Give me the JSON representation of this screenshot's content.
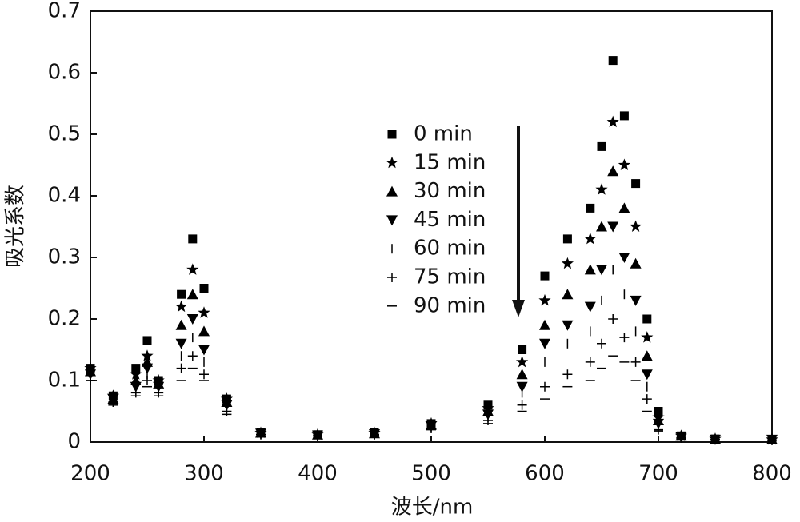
{
  "chart_data": {
    "type": "scatter",
    "x_label": "波长/nm",
    "y_label": "吸光系数",
    "x": [
      200,
      220,
      240,
      250,
      260,
      280,
      290,
      300,
      320,
      350,
      400,
      450,
      500,
      550,
      580,
      600,
      620,
      640,
      650,
      660,
      670,
      680,
      690,
      700,
      720,
      750,
      800
    ],
    "series": [
      {
        "name": "0 min",
        "color": "#000000",
        "marker": "square",
        "values": [
          0.12,
          0.075,
          0.12,
          0.165,
          0.1,
          0.24,
          0.33,
          0.25,
          0.07,
          0.015,
          0.012,
          0.015,
          0.03,
          0.06,
          0.15,
          0.27,
          0.33,
          0.38,
          0.48,
          0.62,
          0.53,
          0.42,
          0.2,
          0.05,
          0.01,
          0.005,
          0.004
        ]
      },
      {
        "name": "15 min",
        "color": "#000000",
        "marker": "star",
        "values": [
          0.12,
          0.075,
          0.11,
          0.14,
          0.1,
          0.22,
          0.28,
          0.21,
          0.07,
          0.015,
          0.012,
          0.015,
          0.03,
          0.055,
          0.13,
          0.23,
          0.29,
          0.33,
          0.41,
          0.52,
          0.45,
          0.35,
          0.17,
          0.04,
          0.01,
          0.005,
          0.004
        ]
      },
      {
        "name": "30 min",
        "color": "#000000",
        "marker": "triangle-up",
        "values": [
          0.115,
          0.07,
          0.1,
          0.13,
          0.095,
          0.19,
          0.24,
          0.18,
          0.065,
          0.015,
          0.012,
          0.014,
          0.028,
          0.05,
          0.11,
          0.19,
          0.24,
          0.28,
          0.35,
          0.44,
          0.38,
          0.29,
          0.14,
          0.035,
          0.01,
          0.005,
          0.004
        ]
      },
      {
        "name": "45 min",
        "color": "#000000",
        "marker": "triangle-down",
        "values": [
          0.11,
          0.07,
          0.09,
          0.12,
          0.09,
          0.16,
          0.2,
          0.15,
          0.06,
          0.014,
          0.011,
          0.013,
          0.026,
          0.045,
          0.09,
          0.16,
          0.19,
          0.22,
          0.28,
          0.35,
          0.3,
          0.23,
          0.11,
          0.03,
          0.008,
          0.004,
          0.004
        ]
      },
      {
        "name": "60 min",
        "color": "#000000",
        "marker": "tick",
        "values": [
          0.105,
          0.065,
          0.085,
          0.11,
          0.085,
          0.14,
          0.17,
          0.13,
          0.055,
          0.013,
          0.011,
          0.012,
          0.024,
          0.04,
          0.08,
          0.13,
          0.16,
          0.18,
          0.23,
          0.28,
          0.24,
          0.18,
          0.09,
          0.025,
          0.008,
          0.004,
          0.003
        ]
      },
      {
        "name": "75 min",
        "color": "#000000",
        "marker": "plus",
        "values": [
          0.1,
          0.065,
          0.08,
          0.1,
          0.08,
          0.12,
          0.14,
          0.11,
          0.05,
          0.012,
          0.01,
          0.012,
          0.022,
          0.035,
          0.06,
          0.09,
          0.11,
          0.13,
          0.16,
          0.2,
          0.17,
          0.13,
          0.07,
          0.02,
          0.007,
          0.004,
          0.003
        ]
      },
      {
        "name": "90 min",
        "color": "#000000",
        "marker": "dash",
        "values": [
          0.1,
          0.06,
          0.075,
          0.09,
          0.075,
          0.1,
          0.12,
          0.1,
          0.045,
          0.012,
          0.01,
          0.011,
          0.02,
          0.03,
          0.05,
          0.07,
          0.09,
          0.1,
          0.12,
          0.14,
          0.13,
          0.1,
          0.05,
          0.018,
          0.006,
          0.004,
          0.003
        ]
      }
    ],
    "xlim": [
      200,
      800
    ],
    "xticks": [
      200,
      300,
      400,
      500,
      600,
      700,
      800
    ],
    "ylim": [
      0,
      0.7
    ],
    "yticks": [
      0,
      0.1,
      0.2,
      0.3,
      0.4,
      0.5,
      0.6,
      0.7
    ]
  }
}
